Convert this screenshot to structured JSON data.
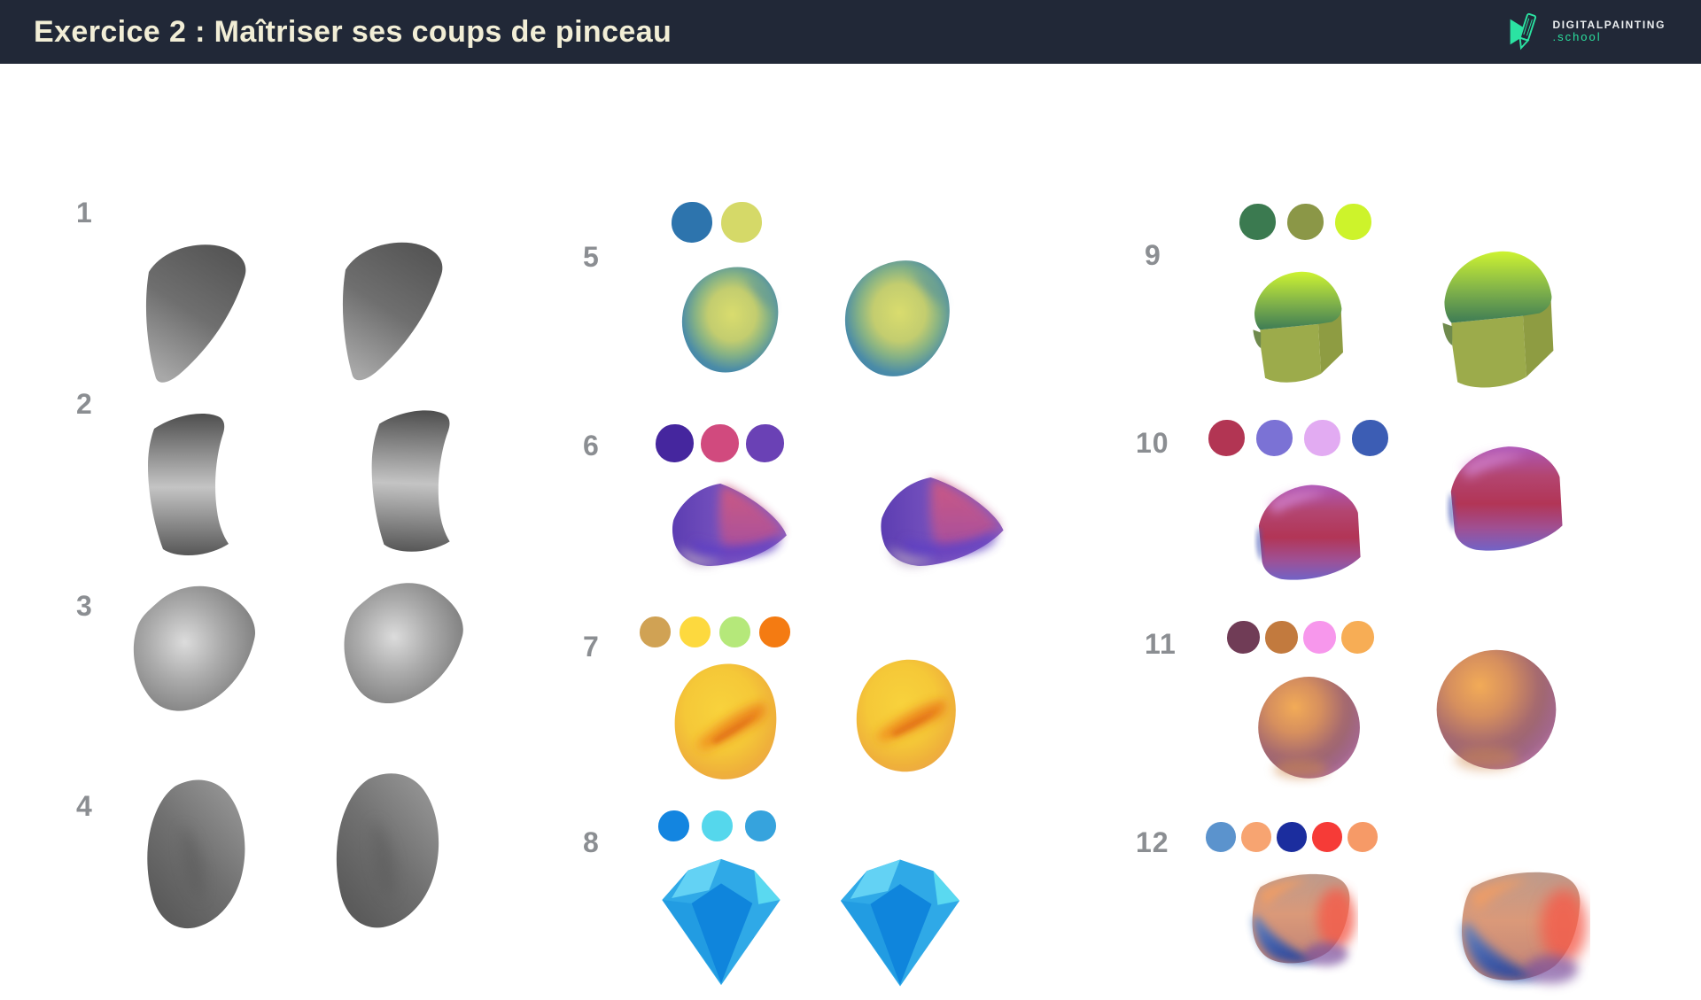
{
  "header": {
    "title": "Exercice 2 : Maîtriser ses coups de pinceau",
    "logo": {
      "brand": "DIGITALPAINTING",
      "domain": ".school"
    }
  },
  "colors": {
    "header_background": "#212837",
    "title_text": "#f2eed6",
    "logo_accent": "#2bdf9e",
    "logo_brand_text": "#eceff1",
    "number_text": "#8b8e92",
    "page_background": "#ffffff"
  },
  "exercises": [
    {
      "number": "1",
      "artwork": "grayscale curved fin stroke, two variants",
      "palette": []
    },
    {
      "number": "2",
      "artwork": "grayscale curved band stroke, two variants",
      "palette": []
    },
    {
      "number": "3",
      "artwork": "grayscale rounded block, two variants",
      "palette": []
    },
    {
      "number": "4",
      "artwork": "grayscale pebble, two variants",
      "palette": []
    },
    {
      "number": "5",
      "artwork": "blue and yellow-green faceted blob, two variants",
      "palette": [
        "#2d74ad",
        "#d5d968"
      ]
    },
    {
      "number": "6",
      "artwork": "purple and pink wedge, two variants",
      "palette": [
        "#45269e",
        "#d14a7e",
        "#6a41b5"
      ]
    },
    {
      "number": "7",
      "artwork": "yellow-orange blob with orange streak, two variants",
      "palette": [
        "#d0a254",
        "#fdd93e",
        "#b5e87a",
        "#f47b12"
      ]
    },
    {
      "number": "8",
      "artwork": "blue diamond gem, two variants",
      "palette": [
        "#1385e0",
        "#55d7ec",
        "#36a3dd"
      ]
    },
    {
      "number": "9",
      "artwork": "chartreuse-green loaf cube, two variants",
      "palette": [
        "#3b7a50",
        "#8b9747",
        "#cdf32b"
      ]
    },
    {
      "number": "10",
      "artwork": "magenta-crimson loaf, two variants",
      "palette": [
        "#b23553",
        "#7b72d5",
        "#e2abf2",
        "#3c5db4"
      ]
    },
    {
      "number": "11",
      "artwork": "orange-plum shaded sphere, two variants",
      "palette": [
        "#703c56",
        "#c27a3e",
        "#f797ec",
        "#f7ad55"
      ]
    },
    {
      "number": "12",
      "artwork": "salmon and blue stone, two variants",
      "palette": [
        "#5b93cd",
        "#f7a471",
        "#1b2d9e",
        "#f63b37",
        "#f69a67"
      ]
    }
  ]
}
